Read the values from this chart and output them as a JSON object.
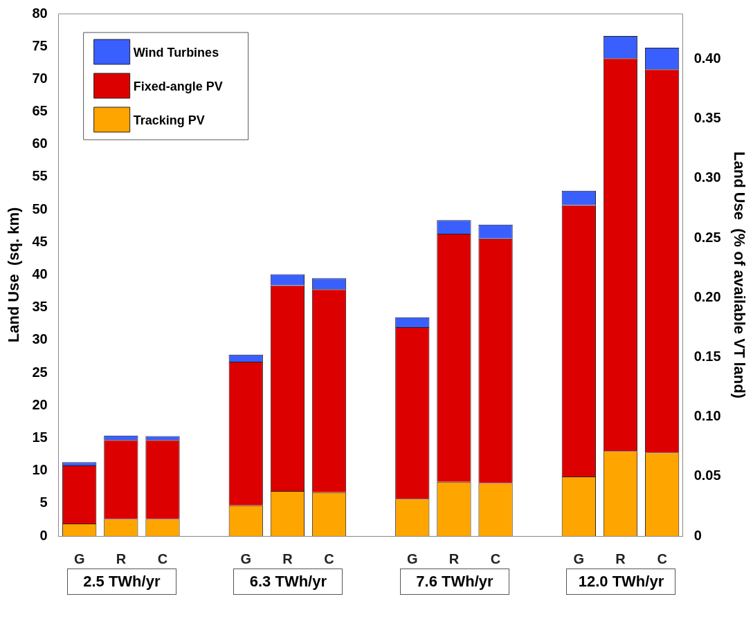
{
  "chart_data": {
    "type": "bar",
    "stacked": true,
    "categories": [
      "G",
      "R",
      "C",
      null,
      "G",
      "R",
      "C",
      null,
      "G",
      "R",
      "C",
      null,
      "G",
      "R",
      "C"
    ],
    "series": [
      {
        "name": "Tracking PV",
        "color": "#ffa500",
        "values": [
          1.9,
          2.6,
          2.6,
          null,
          4.7,
          6.9,
          6.7,
          null,
          5.7,
          8.3,
          8.1,
          null,
          9.1,
          13.0,
          12.8
        ]
      },
      {
        "name": "Fixed-angle PV",
        "color": "#dd0000",
        "values": [
          8.9,
          12.1,
          12.1,
          null,
          22.0,
          31.5,
          31.1,
          null,
          26.3,
          38.0,
          37.5,
          null,
          41.6,
          60.2,
          58.7
        ]
      },
      {
        "name": "Wind Turbines",
        "color": "#3a5fff",
        "values": [
          0.5,
          0.7,
          0.6,
          null,
          1.1,
          1.7,
          1.7,
          null,
          1.5,
          2.1,
          2.1,
          null,
          2.2,
          3.4,
          3.3
        ]
      }
    ],
    "ylabel": "Land Use  (sq. km)",
    "y2label": "Land Use  (% of available VT land)",
    "ylim": [
      0,
      80
    ],
    "yticks": [
      0,
      5,
      10,
      15,
      20,
      25,
      30,
      35,
      40,
      45,
      50,
      55,
      60,
      65,
      70,
      75,
      80
    ],
    "y2lim": [
      0,
      0.438
    ],
    "y2ticks": [
      0,
      0.05,
      {
        "value": 0.1,
        "label": "0.10"
      },
      0.15,
      {
        "value": 0.2,
        "label": "0.20"
      },
      0.25,
      {
        "value": 0.3,
        "label": "0.30"
      },
      0.35,
      {
        "value": 0.4,
        "label": "0.40"
      }
    ],
    "annotations": [
      "2.5 TWh/yr",
      "6.3 TWh/yr",
      "7.6 TWh/yr",
      "12.0 TWh/yr"
    ],
    "legend": "top left",
    "grid": false
  }
}
